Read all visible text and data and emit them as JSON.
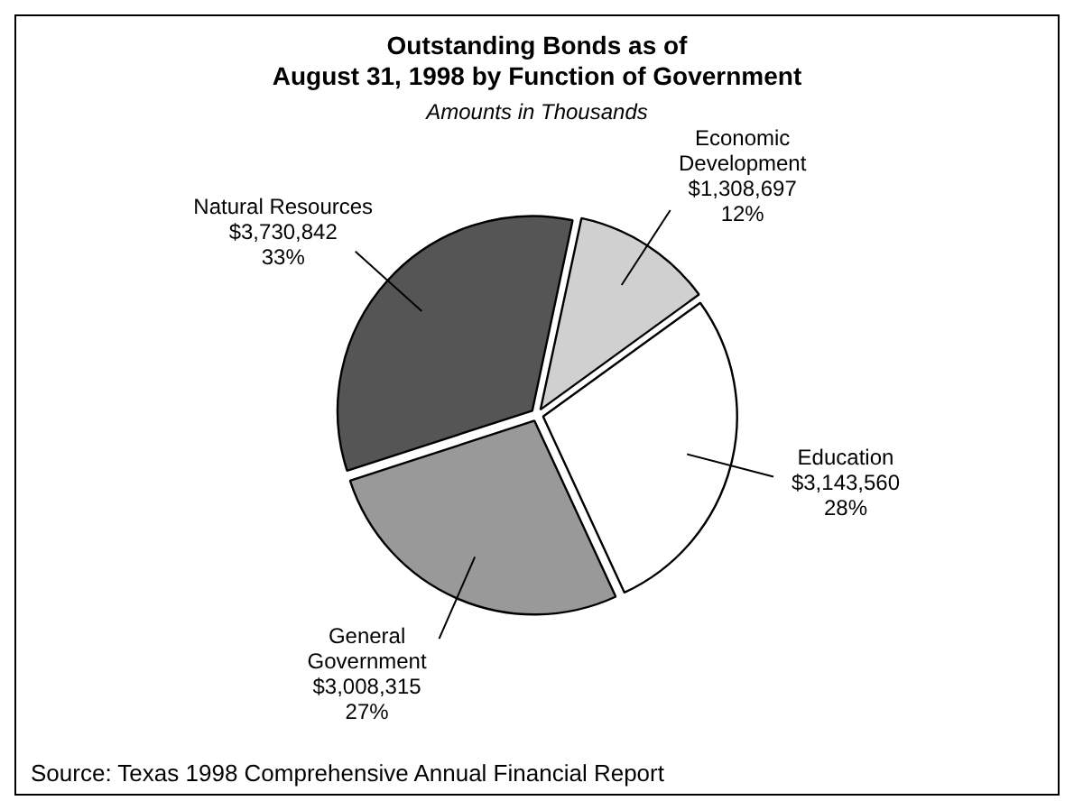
{
  "chart_data": {
    "type": "pie",
    "title": "Outstanding Bonds as of\nAugust 31, 1998 by Function of Government",
    "subtitle": "Amounts in Thousands",
    "categories": [
      "Economic\nDevelopment",
      "Education",
      "General\nGovernment",
      "Natural Resources"
    ],
    "values": [
      1308697,
      3143560,
      3008315,
      3730842
    ],
    "colors": [
      "#d0d0d0",
      "#ffffff",
      "#999999",
      "#555555"
    ],
    "value_labels": [
      "$1,308,697\n12%",
      "$3,143,560\n28%",
      "$3,008,315\n27%",
      "$3,730,842\n33%"
    ],
    "legend": false,
    "annotations": [
      "Source:  Texas 1998 Comprehensive Annual Financial Report"
    ]
  }
}
